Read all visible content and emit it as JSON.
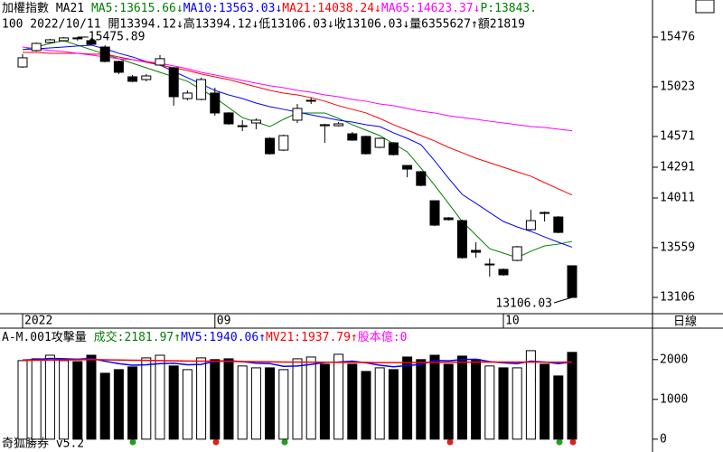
{
  "header": {
    "line1": [
      {
        "text": "加權指數 MA21 ",
        "color": "#000000"
      },
      {
        "text": "MA5:13615.66↓",
        "color": "#008000"
      },
      {
        "text": "MA10:13563.03↓",
        "color": "#0000ff"
      },
      {
        "text": "MA21:14038.24↓",
        "color": "#ff0000"
      },
      {
        "text": "MA65:14623.37↓",
        "color": "#ff00ff"
      },
      {
        "text": "P:13843.",
        "color": "#008000"
      }
    ],
    "line2": "100 2022/10/11 開13394.12↓高13394.12↓低13106.03↓收13106.03↓量6355627↑額21819",
    "volume_title": [
      {
        "text": "A-M.001攻擊量 ",
        "color": "#000000"
      },
      {
        "text": "成交:2181.97↑",
        "color": "#008000"
      },
      {
        "text": "MV5:1940.06↑",
        "color": "#0000ff"
      },
      {
        "text": "MV21:1937.79↑",
        "color": "#ff0000"
      },
      {
        "text": "股本億:0",
        "color": "#ff00ff"
      }
    ],
    "period": "日線",
    "footer": "奇狐勝券 v5.2"
  },
  "chart_data": [
    {
      "type": "candlestick",
      "categories": [
        "2022",
        null,
        null,
        null,
        null,
        null,
        null,
        null,
        null,
        null,
        null,
        null,
        null,
        null,
        "09",
        null,
        null,
        null,
        null,
        null,
        null,
        null,
        null,
        null,
        null,
        null,
        null,
        null,
        null,
        null,
        null,
        null,
        null,
        null,
        null,
        "10",
        null,
        null,
        null,
        null,
        null
      ],
      "open": [
        15204,
        15353,
        15427,
        15443,
        15468,
        15443,
        15385,
        15254,
        15114,
        15089,
        15221,
        15196,
        14916,
        14908,
        14966,
        14785,
        14661,
        14694,
        14554,
        14447,
        14719,
        14892,
        14678,
        14669,
        14595,
        14571,
        14472,
        14513,
        14307,
        14250,
        13986,
        13830,
        13805,
        13534,
        13402,
        13361,
        13443,
        13723,
        13879,
        13838,
        13394.12
      ],
      "high": [
        15320,
        15427,
        15460,
        15476,
        15475.89,
        15468,
        15402,
        15262,
        15131,
        15139,
        15312,
        15204,
        14990,
        15106,
        15015,
        14793,
        14719,
        14735,
        14562,
        14587,
        14867,
        14925,
        14686,
        14702,
        14612,
        14579,
        14562,
        14521,
        14307,
        14258,
        13986,
        13838,
        13814,
        13608,
        13460,
        13369,
        13575,
        13904,
        13887,
        13846,
        13394.12
      ],
      "low": [
        15196,
        15344,
        15418,
        15435,
        15443,
        15402,
        15246,
        15139,
        15065,
        15073,
        15213,
        14851,
        14900,
        14900,
        14760,
        14678,
        14620,
        14637,
        14406,
        14439,
        14694,
        14867,
        14513,
        14661,
        14530,
        14406,
        14464,
        14398,
        14200,
        14118,
        13755,
        13805,
        13460,
        13468,
        13295,
        13304,
        13435,
        13715,
        13797,
        13690,
        13106.03
      ],
      "close": [
        15287,
        15418,
        15451,
        15468,
        15460,
        15410,
        15254,
        15155,
        15073,
        15122,
        15279,
        14933,
        14966,
        15089,
        14785,
        14686,
        14669,
        14719,
        14414,
        14579,
        14826,
        14900,
        14669,
        14686,
        14538,
        14414,
        14554,
        14406,
        14274,
        14126,
        13764,
        13814,
        13468,
        13517,
        13410,
        13312,
        13567,
        13805,
        13871,
        13698,
        13106.03
      ],
      "up_color": "#ffffff",
      "down_color": "#000000",
      "series": [
        {
          "color": "#008000",
          "values": [
            15361,
            15385,
            15418,
            15443,
            15402,
            15361,
            15320,
            15279,
            15237,
            15196,
            15155,
            15114,
            15073,
            14999,
            14925,
            14834,
            14743,
            14702,
            14661,
            14727,
            14785,
            14785,
            14785,
            14735,
            14678,
            14628,
            14579,
            14505,
            14431,
            14283,
            14126,
            13962,
            13797,
            13674,
            13550,
            13509,
            13468,
            13526,
            13575,
            13591,
            13615.66
          ]
        },
        {
          "color": "#0000ff",
          "values": [
            15361,
            15369,
            15377,
            15385,
            15394,
            15402,
            15369,
            15328,
            15295,
            15254,
            15221,
            15163,
            15106,
            15048,
            14990,
            14949,
            14916,
            14875,
            14842,
            14818,
            14793,
            14768,
            14743,
            14719,
            14702,
            14678,
            14661,
            14604,
            14554,
            14496,
            14349,
            14192,
            14044,
            13962,
            13879,
            13797,
            13748,
            13707,
            13657,
            13608,
            13563.03
          ]
        },
        {
          "color": "#ff0000",
          "values": [
            15336,
            15336,
            15328,
            15328,
            15328,
            15320,
            15320,
            15295,
            15270,
            15246,
            15221,
            15196,
            15171,
            15139,
            15114,
            15089,
            15056,
            15023,
            14990,
            14966,
            14949,
            14925,
            14892,
            14851,
            14818,
            14785,
            14735,
            14678,
            14628,
            14579,
            14530,
            14472,
            14423,
            14373,
            14332,
            14291,
            14250,
            14209,
            14151,
            14094,
            14038.24
          ]
        },
        {
          "color": "#ff00ff",
          "values": [
            15385,
            15369,
            15353,
            15344,
            15328,
            15312,
            15295,
            15279,
            15270,
            15254,
            15237,
            15213,
            15188,
            15155,
            15131,
            15106,
            15081,
            15056,
            15032,
            15015,
            14990,
            14974,
            14949,
            14933,
            14908,
            14892,
            14867,
            14851,
            14826,
            14801,
            14785,
            14760,
            14743,
            14727,
            14710,
            14694,
            14678,
            14661,
            14653,
            14637,
            14623.37
          ]
        }
      ],
      "ylim": [
        12958,
        15813
      ],
      "yticks": [
        15476,
        15023,
        14571,
        14291,
        14011,
        13559,
        13106
      ]
    },
    {
      "type": "bar",
      "values": [
        1975,
        2020,
        2110,
        1975,
        1950,
        2110,
        1657,
        1748,
        1816,
        2043,
        2110,
        1840,
        1748,
        2043,
        2000,
        2020,
        1840,
        1793,
        1793,
        1748,
        2020,
        2065,
        1884,
        2134,
        1884,
        1702,
        1793,
        1748,
        2065,
        2000,
        2110,
        1884,
        2088,
        2000,
        1840,
        1793,
        1793,
        2225,
        1884,
        1589,
        2181.97
      ],
      "series": [
        {
          "color": "#0000ff",
          "values": [
            1990,
            2000,
            2030,
            2020,
            2010,
            2030,
            1960,
            1900,
            1860,
            1870,
            1900,
            1910,
            1870,
            1880,
            1960,
            1970,
            1950,
            1910,
            1900,
            1830,
            1840,
            1880,
            1930,
            1940,
            1960,
            1920,
            1860,
            1820,
            1850,
            1880,
            1980,
            1970,
            2000,
            2010,
            1950,
            1920,
            1900,
            1960,
            1940,
            1900,
            1940.06
          ]
        },
        {
          "color": "#ff0000",
          "values": [
            1980,
            1985,
            1990,
            1990,
            1995,
            2000,
            1995,
            1990,
            1985,
            1980,
            1975,
            1970,
            1965,
            1960,
            1960,
            1955,
            1950,
            1950,
            1945,
            1940,
            1940,
            1935,
            1935,
            1930,
            1930,
            1930,
            1925,
            1925,
            1925,
            1930,
            1930,
            1935,
            1935,
            1940,
            1940,
            1940,
            1938,
            1938,
            1937,
            1937,
            1937.79
          ]
        }
      ],
      "ylim": [
        -300,
        2700
      ],
      "yticks": [
        2000,
        1000,
        0
      ]
    }
  ]
}
